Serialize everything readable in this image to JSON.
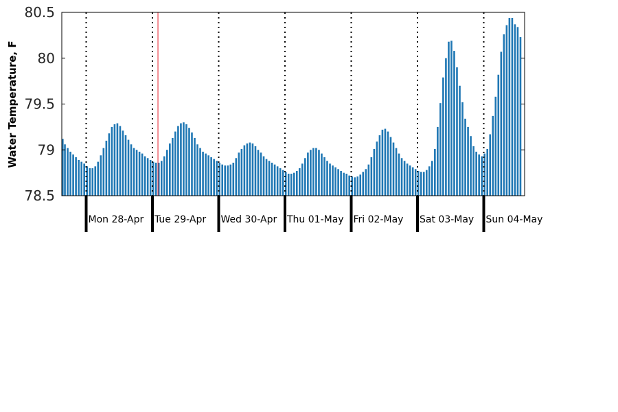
{
  "chart_data": {
    "type": "bar",
    "title": "",
    "xlabel": "",
    "ylabel": "Water Temperature, F",
    "ylim": [
      78.5,
      80.5
    ],
    "yticks": [
      "78.5",
      "79",
      "79.5",
      "80",
      "80.5"
    ],
    "day_labels": [
      "Mon 28-Apr",
      "Tue 29-Apr",
      "Wed 30-Apr",
      "Thu 01-May",
      "Fri 02-May",
      "Sat 03-May",
      "Sun 04-May"
    ],
    "bar_color": "#1f77b4",
    "bar_edge_color": "#0b5a8f",
    "grid": false,
    "day_separators": "dotted vertical lines at midnight",
    "current_time_marker_color": "#e8202a",
    "current_time_marker_hour": 26,
    "interval_hours": 1,
    "start": "Sun 27-Apr 15:00",
    "values": [
      79.12,
      79.06,
      79.02,
      78.98,
      78.95,
      78.92,
      78.89,
      78.87,
      78.85,
      78.82,
      78.8,
      78.8,
      78.82,
      78.87,
      78.94,
      79.02,
      79.1,
      79.18,
      79.25,
      79.28,
      79.29,
      79.26,
      79.21,
      79.16,
      79.11,
      79.06,
      79.02,
      79.0,
      78.98,
      78.96,
      78.93,
      78.91,
      78.89,
      78.87,
      78.86,
      78.86,
      78.88,
      78.93,
      79.0,
      79.07,
      79.13,
      79.2,
      79.26,
      79.29,
      79.3,
      79.28,
      79.24,
      79.19,
      79.13,
      79.06,
      79.02,
      78.98,
      78.96,
      78.94,
      78.92,
      78.9,
      78.88,
      78.86,
      78.84,
      78.83,
      78.83,
      78.84,
      78.86,
      78.91,
      78.97,
      79.01,
      79.05,
      79.07,
      79.08,
      79.07,
      79.04,
      79.0,
      78.97,
      78.93,
      78.9,
      78.88,
      78.86,
      78.84,
      78.82,
      78.8,
      78.78,
      78.76,
      78.74,
      78.74,
      78.75,
      78.77,
      78.8,
      78.85,
      78.91,
      78.97,
      79.0,
      79.02,
      79.02,
      79.0,
      78.96,
      78.92,
      78.88,
      78.85,
      78.83,
      78.81,
      78.79,
      78.77,
      78.75,
      78.74,
      78.72,
      78.71,
      78.7,
      78.71,
      78.73,
      78.76,
      78.79,
      78.84,
      78.92,
      79.01,
      79.09,
      79.16,
      79.22,
      79.23,
      79.2,
      79.14,
      79.08,
      79.02,
      78.96,
      78.91,
      78.88,
      78.85,
      78.83,
      78.81,
      78.79,
      78.77,
      78.76,
      78.76,
      78.78,
      78.82,
      78.88,
      79.01,
      79.25,
      79.51,
      79.79,
      80.0,
      80.18,
      80.19,
      80.08,
      79.9,
      79.7,
      79.52,
      79.34,
      79.25,
      79.15,
      79.04,
      78.98,
      78.95,
      78.93,
      78.96,
      79.01,
      79.17,
      79.37,
      79.58,
      79.82,
      80.07,
      80.26,
      80.36,
      80.44,
      80.44,
      80.37,
      80.34,
      80.23
    ]
  }
}
